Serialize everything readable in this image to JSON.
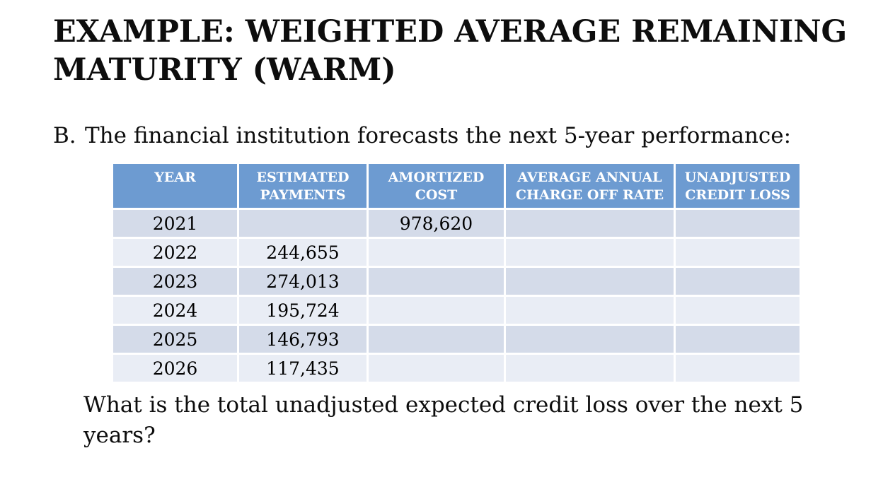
{
  "slide": {
    "title_line1": "EXAMPLE: WEIGHTED AVERAGE REMAINING",
    "title_line2": "MATURITY (WARM)",
    "bullet_label": "B.",
    "bullet_text": "The financial institution forecasts the next 5-year performance:",
    "question_line1": "What is the total unadjusted expected credit loss over the next 5",
    "question_line2": "years?"
  },
  "table": {
    "headers": [
      "YEAR",
      "ESTIMATED PAYMENTS",
      "AMORTIZED COST",
      "AVERAGE ANNUAL CHARGE OFF RATE",
      "UNADJUSTED CREDIT LOSS"
    ],
    "rows": [
      [
        "2021",
        "",
        "978,620",
        "",
        ""
      ],
      [
        "2022",
        "244,655",
        "",
        "",
        ""
      ],
      [
        "2023",
        "274,013",
        "",
        "",
        ""
      ],
      [
        "2024",
        "195,724",
        "",
        "",
        ""
      ],
      [
        "2025",
        "146,793",
        "",
        "",
        ""
      ],
      [
        "2026",
        "117,435",
        "",
        "",
        ""
      ]
    ],
    "colors": {
      "header_bg": "#6D9BD1",
      "header_text": "#FFFFFF",
      "row_dark": "#D4DBE9",
      "row_light": "#E9EDF5"
    }
  }
}
